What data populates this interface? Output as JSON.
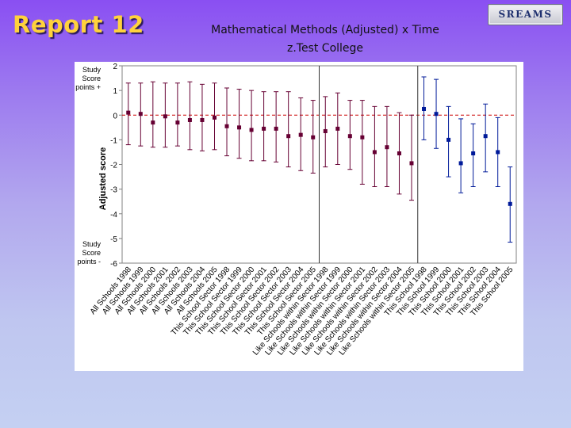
{
  "header": {
    "report_title": "Report 12",
    "chart_title_line1": "Mathematical Methods (Adjusted) x Time",
    "chart_title_line2": "z.Test College",
    "logo_text": "SREAMS"
  },
  "colors": {
    "all_schools": "#660033",
    "sector": "#660033",
    "like_schools": "#660033",
    "this_school": "#001a99",
    "zero_line": "#cc0000"
  },
  "chart_data": {
    "type": "scatter",
    "title": "Mathematical Methods (Adjusted) x Time",
    "subtitle": "z.Test College",
    "xlabel": "",
    "ylabel": "Adjusted score",
    "ylim": [
      -6,
      2
    ],
    "yticks": [
      "2",
      "1",
      "0",
      "-1",
      "-2",
      "-3",
      "-4",
      "-5",
      "-6"
    ],
    "y_annotation_top": [
      "Study",
      "Score",
      "points +"
    ],
    "y_annotation_bottom": [
      "Study",
      "Score",
      "points -"
    ],
    "grid": false,
    "zero_reference_line": 0,
    "group_separators_after_index": [
      15,
      23
    ],
    "categories": [
      "All Schools 1998",
      "All Schools 1999",
      "All Schools 2000",
      "All Schools 2001",
      "All Schools 2002",
      "All Schools 2003",
      "All Schools 2004",
      "All Schools 2005",
      "This School Sector 1998",
      "This School Sector 1999",
      "This School Sector 2000",
      "This School Sector 2001",
      "This School Sector 2002",
      "This School Sector 2003",
      "This School Sector 2004",
      "This School Sector 2005",
      "Like Schools within Sector 1998",
      "Like Schools within Sector 1999",
      "Like Schools within Sector 2000",
      "Like Schools within Sector 2001",
      "Like Schools within Sector 2002",
      "Like Schools within Sector 2003",
      "Like Schools within Sector 2004",
      "Like Schools within Sector 2005",
      "This School 1998",
      "This School 1999",
      "This School 2000",
      "This School 2001",
      "This School 2002",
      "This School 2003",
      "This School 2004",
      "This School 2005"
    ],
    "series": [
      {
        "group": "all_schools",
        "points": [
          {
            "y": 0.1,
            "low": -1.2,
            "high": 1.3
          },
          {
            "y": 0.05,
            "low": -1.25,
            "high": 1.3
          },
          {
            "y": -0.3,
            "low": -1.3,
            "high": 1.35
          },
          {
            "y": -0.05,
            "low": -1.3,
            "high": 1.3
          },
          {
            "y": -0.3,
            "low": -1.25,
            "high": 1.3
          },
          {
            "y": -0.2,
            "low": -1.4,
            "high": 1.35
          },
          {
            "y": -0.2,
            "low": -1.45,
            "high": 1.25
          },
          {
            "y": -0.1,
            "low": -1.4,
            "high": 1.3
          }
        ]
      },
      {
        "group": "sector",
        "points": [
          {
            "y": -0.45,
            "low": -1.65,
            "high": 1.1
          },
          {
            "y": -0.5,
            "low": -1.75,
            "high": 1.05
          },
          {
            "y": -0.6,
            "low": -1.85,
            "high": 1.0
          },
          {
            "y": -0.55,
            "low": -1.85,
            "high": 0.95
          },
          {
            "y": -0.55,
            "low": -1.9,
            "high": 0.95
          },
          {
            "y": -0.85,
            "low": -2.1,
            "high": 0.95
          },
          {
            "y": -0.8,
            "low": -2.25,
            "high": 0.7
          },
          {
            "y": -0.9,
            "low": -2.35,
            "high": 0.6
          }
        ]
      },
      {
        "group": "like_schools",
        "points": [
          {
            "y": -0.65,
            "low": -2.1,
            "high": 0.75
          },
          {
            "y": -0.55,
            "low": -2.0,
            "high": 0.9
          },
          {
            "y": -0.85,
            "low": -2.2,
            "high": 0.6
          },
          {
            "y": -0.9,
            "low": -2.8,
            "high": 0.6
          },
          {
            "y": -1.5,
            "low": -2.9,
            "high": 0.35
          },
          {
            "y": -1.3,
            "low": -2.9,
            "high": 0.35
          },
          {
            "y": -1.55,
            "low": -3.2,
            "high": 0.1
          },
          {
            "y": -1.95,
            "low": -3.45,
            "high": 0.0
          }
        ]
      },
      {
        "group": "this_school",
        "points": [
          {
            "y": 0.25,
            "low": -1.0,
            "high": 1.55
          },
          {
            "y": 0.05,
            "low": -1.35,
            "high": 1.45
          },
          {
            "y": -1.0,
            "low": -2.5,
            "high": 0.35
          },
          {
            "y": -1.95,
            "low": -3.15,
            "high": -0.15
          },
          {
            "y": -1.55,
            "low": -2.9,
            "high": -0.35
          },
          {
            "y": -0.85,
            "low": -2.3,
            "high": 0.45
          },
          {
            "y": -1.5,
            "low": -2.9,
            "high": -0.1
          },
          {
            "y": -3.6,
            "low": -5.15,
            "high": -2.1
          }
        ]
      }
    ]
  }
}
